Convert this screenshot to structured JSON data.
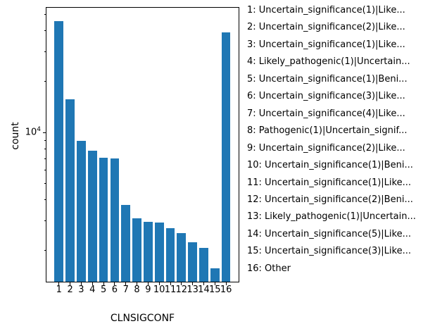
{
  "figure": {
    "background": "#ffffff",
    "bar_color": "#1f77b4",
    "axis_color": "#000000",
    "text_color": "#000000"
  },
  "chart_data": {
    "type": "bar",
    "title": "",
    "xlabel": "CLNSIGCONF",
    "ylabel": "count",
    "yscale": "log",
    "ylim": [
      1296,
      55180
    ],
    "grid": false,
    "legend_position": "right-outside",
    "categories": [
      "1",
      "2",
      "3",
      "4",
      "5",
      "6",
      "7",
      "8",
      "9",
      "10",
      "11",
      "12",
      "13",
      "14",
      "15",
      "16"
    ],
    "values": [
      46000,
      15800,
      8900,
      7800,
      7100,
      7000,
      3700,
      3100,
      2940,
      2910,
      2700,
      2520,
      2220,
      2060,
      1550,
      39500
    ],
    "ytick_major_value": 10000,
    "ytick_label": {
      "base": "10",
      "exponent": "4"
    },
    "ytick_minor_values": [
      2000,
      3000,
      4000,
      5000,
      6000,
      7000,
      8000,
      9000,
      20000,
      30000,
      40000,
      50000
    ]
  },
  "legend": {
    "items": [
      "1: Uncertain_significance(1)|Like...",
      "2: Uncertain_significance(2)|Like...",
      "3: Uncertain_significance(1)|Like...",
      "4: Likely_pathogenic(1)|Uncertain...",
      "5: Uncertain_significance(1)|Beni...",
      "6: Uncertain_significance(3)|Like...",
      "7: Uncertain_significance(4)|Like...",
      "8: Pathogenic(1)|Uncertain_signif...",
      "9: Uncertain_significance(2)|Like...",
      "10: Uncertain_significance(1)|Beni...",
      "11: Uncertain_significance(1)|Like...",
      "12: Uncertain_significance(2)|Beni...",
      "13: Likely_pathogenic(1)|Uncertain...",
      "14: Uncertain_significance(5)|Like...",
      "15: Uncertain_significance(3)|Like...",
      "16: Other"
    ]
  }
}
